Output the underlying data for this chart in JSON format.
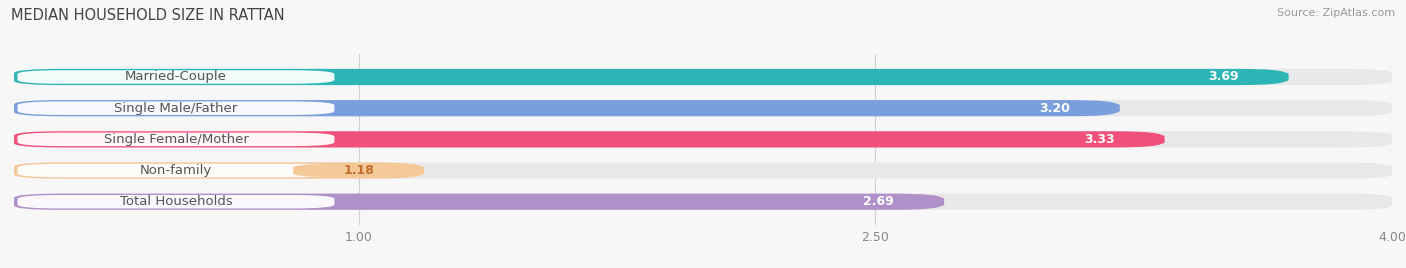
{
  "title": "MEDIAN HOUSEHOLD SIZE IN RATTAN",
  "source": "Source: ZipAtlas.com",
  "categories": [
    "Married-Couple",
    "Single Male/Father",
    "Single Female/Mother",
    "Non-family",
    "Total Households"
  ],
  "values": [
    3.69,
    3.2,
    3.33,
    1.18,
    2.69
  ],
  "bar_colors": [
    "#2db5b5",
    "#7b9fdd",
    "#f0507a",
    "#f5c898",
    "#b090c8"
  ],
  "value_text_colors": [
    "#ffffff",
    "#ffffff",
    "#ffffff",
    "#c07030",
    "#ffffff"
  ],
  "xlim_min": 0.0,
  "xlim_max": 4.0,
  "xticks": [
    1.0,
    2.5,
    4.0
  ],
  "xtick_labels": [
    "1.00",
    "2.50",
    "4.00"
  ],
  "bar_height": 0.52,
  "label_fontsize": 9.5,
  "value_fontsize": 9.0,
  "title_fontsize": 10.5,
  "background_color": "#f7f7f7",
  "bar_bg_color": "#e8e8e8",
  "label_pill_color": "#ffffff",
  "label_text_color": "#555555",
  "grid_color": "#d0d0d0"
}
